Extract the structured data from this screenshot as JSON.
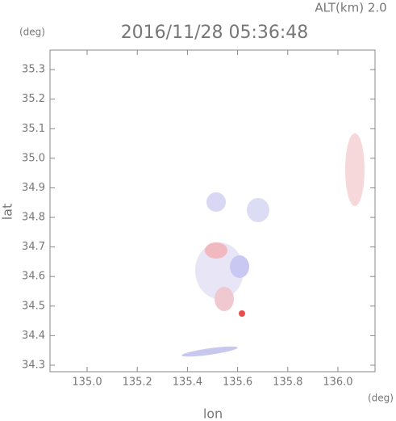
{
  "chart_data": {
    "type": "map",
    "title": "2016/11/28 05:36:48",
    "subtitle": "ALT(km)  2.0",
    "x_label": "lon",
    "y_label": "lat",
    "x_unit": "(deg)",
    "y_unit": "(deg)",
    "xlim": [
      134.852,
      136.148
    ],
    "ylim": [
      34.278,
      35.366
    ],
    "xticks": [
      {
        "value": 135.0,
        "label": "135.0"
      },
      135.2,
      135.4,
      135.6,
      135.8,
      {
        "value": 136.0,
        "label": "136.0"
      }
    ],
    "yticks": [
      34.3,
      34.4,
      34.5,
      34.6,
      34.7,
      34.8,
      34.9,
      {
        "value": 35.0,
        "label": "35.0"
      },
      35.1,
      35.2,
      35.3
    ]
  }
}
